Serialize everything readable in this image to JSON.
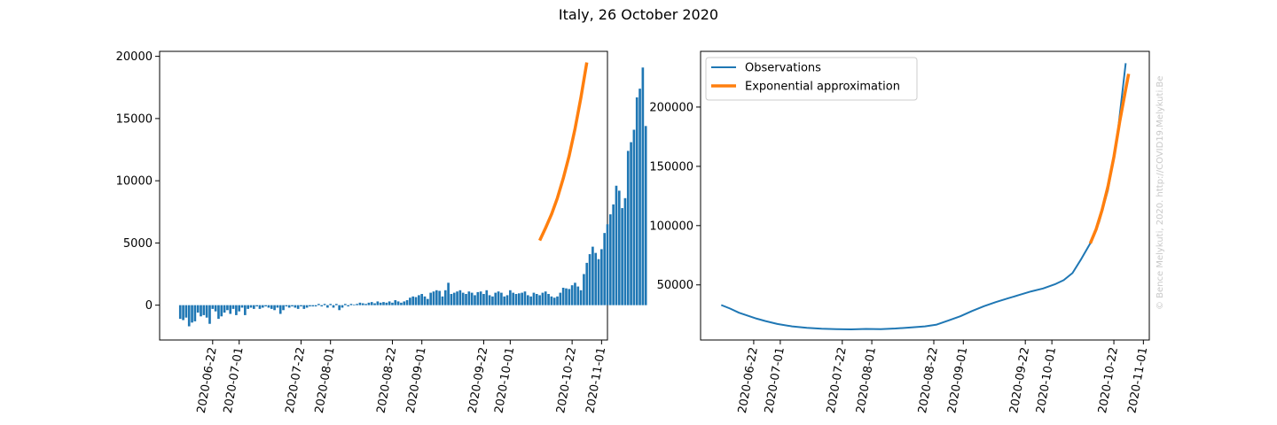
{
  "figure": {
    "title": "Italy, 26 October 2020",
    "credit": "© Bence Melykuti, 2020. http://COVID19.Melykuti.Be"
  },
  "colors": {
    "bar": "#1f77b4",
    "observations": "#1f77b4",
    "exponential": "#ff7f0e"
  },
  "chart_data": [
    {
      "type": "bar",
      "title": "",
      "xlabel": "",
      "ylabel": "",
      "x_ticks": [
        "2020-06-22",
        "2020-07-01",
        "2020-07-22",
        "2020-08-01",
        "2020-08-22",
        "2020-09-01",
        "2020-09-22",
        "2020-10-01",
        "2020-10-22",
        "2020-11-01"
      ],
      "y_ticks": [
        0,
        5000,
        10000,
        15000,
        20000
      ],
      "xlim": [
        "2020-06-04",
        "2020-11-03"
      ],
      "ylim": [
        -2800,
        20400
      ],
      "start_date": "2020-06-11",
      "series": [
        {
          "kind": "bar",
          "values": [
            -1100,
            -1200,
            -1000,
            -1700,
            -1400,
            -1300,
            -600,
            -900,
            -800,
            -1000,
            -1500,
            -300,
            -500,
            -1100,
            -900,
            -600,
            -400,
            -700,
            -300,
            -800,
            -500,
            -200,
            -800,
            -300,
            -200,
            -300,
            -100,
            -300,
            -200,
            -100,
            -200,
            -300,
            -400,
            -200,
            -700,
            -400,
            -100,
            -200,
            -100,
            -200,
            -300,
            -100,
            -300,
            -200,
            -100,
            -100,
            -100,
            100,
            -100,
            100,
            -200,
            100,
            -200,
            100,
            -400,
            -200,
            100,
            -100,
            100,
            50,
            100,
            200,
            150,
            100,
            200,
            250,
            150,
            300,
            200,
            250,
            200,
            300,
            200,
            400,
            300,
            200,
            300,
            400,
            600,
            700,
            650,
            800,
            900,
            700,
            500,
            1000,
            1100,
            1200,
            1150,
            700,
            1200,
            1800,
            900,
            1000,
            1100,
            1200,
            1000,
            900,
            1100,
            1000,
            800,
            1050,
            1100,
            900,
            1200,
            800,
            700,
            1000,
            1100,
            1000,
            700,
            800,
            1200,
            1000,
            900,
            950,
            1000,
            1100,
            800,
            700,
            1000,
            900,
            800,
            1000,
            1100,
            900,
            700,
            600,
            700,
            1000,
            1400,
            1350,
            1300,
            1600,
            1800,
            1500,
            1200,
            2500,
            3400,
            4100,
            4700,
            4200,
            3700,
            4500,
            5800,
            6500,
            7300,
            8100,
            9600,
            9200,
            7800,
            8600,
            12400,
            13100,
            14100,
            16700,
            17400,
            19100,
            14400
          ]
        },
        {
          "kind": "line",
          "name": "",
          "x": [
            "2020-10-11",
            "2020-10-13",
            "2020-10-15",
            "2020-10-17",
            "2020-10-19",
            "2020-10-21",
            "2020-10-23",
            "2020-10-25",
            "2020-10-27"
          ],
          "y": [
            5200,
            6200,
            7300,
            8600,
            10200,
            12000,
            14200,
            16700,
            19500
          ]
        }
      ]
    },
    {
      "type": "line",
      "title": "",
      "xlabel": "",
      "ylabel": "",
      "x_ticks": [
        "2020-06-22",
        "2020-07-01",
        "2020-07-22",
        "2020-08-01",
        "2020-08-22",
        "2020-09-01",
        "2020-09-22",
        "2020-10-01",
        "2020-10-22",
        "2020-11-01"
      ],
      "y_ticks": [
        50000,
        100000,
        150000,
        200000
      ],
      "xlim": [
        "2020-06-04",
        "2020-11-03"
      ],
      "ylim": [
        3500,
        247000
      ],
      "legend": "top-left",
      "series": [
        {
          "name": "Observations",
          "x": [
            "2020-06-11",
            "2020-06-14",
            "2020-06-17",
            "2020-06-20",
            "2020-06-23",
            "2020-06-26",
            "2020-06-30",
            "2020-07-05",
            "2020-07-10",
            "2020-07-15",
            "2020-07-20",
            "2020-07-25",
            "2020-07-30",
            "2020-08-04",
            "2020-08-09",
            "2020-08-14",
            "2020-08-19",
            "2020-08-23",
            "2020-08-27",
            "2020-08-31",
            "2020-09-04",
            "2020-09-08",
            "2020-09-12",
            "2020-09-16",
            "2020-09-20",
            "2020-09-24",
            "2020-09-28",
            "2020-10-02",
            "2020-10-05",
            "2020-10-08",
            "2020-10-11",
            "2020-10-14",
            "2020-10-17",
            "2020-10-20",
            "2020-10-23",
            "2020-10-26"
          ],
          "y": [
            33000,
            30000,
            26500,
            24000,
            21500,
            19500,
            17000,
            15000,
            13800,
            13000,
            12600,
            12500,
            12800,
            12700,
            13200,
            14000,
            15000,
            16500,
            20000,
            23500,
            28000,
            32000,
            35500,
            38500,
            41500,
            44500,
            47000,
            50500,
            54000,
            60000,
            72000,
            85000,
            103000,
            130000,
            172000,
            237000
          ]
        },
        {
          "name": "Exponential approximation",
          "x": [
            "2020-10-14",
            "2020-10-16",
            "2020-10-18",
            "2020-10-20",
            "2020-10-22",
            "2020-10-24",
            "2020-10-26",
            "2020-10-27"
          ],
          "y": [
            85000,
            97000,
            113000,
            133000,
            158000,
            188000,
            215000,
            228000
          ]
        }
      ]
    }
  ]
}
